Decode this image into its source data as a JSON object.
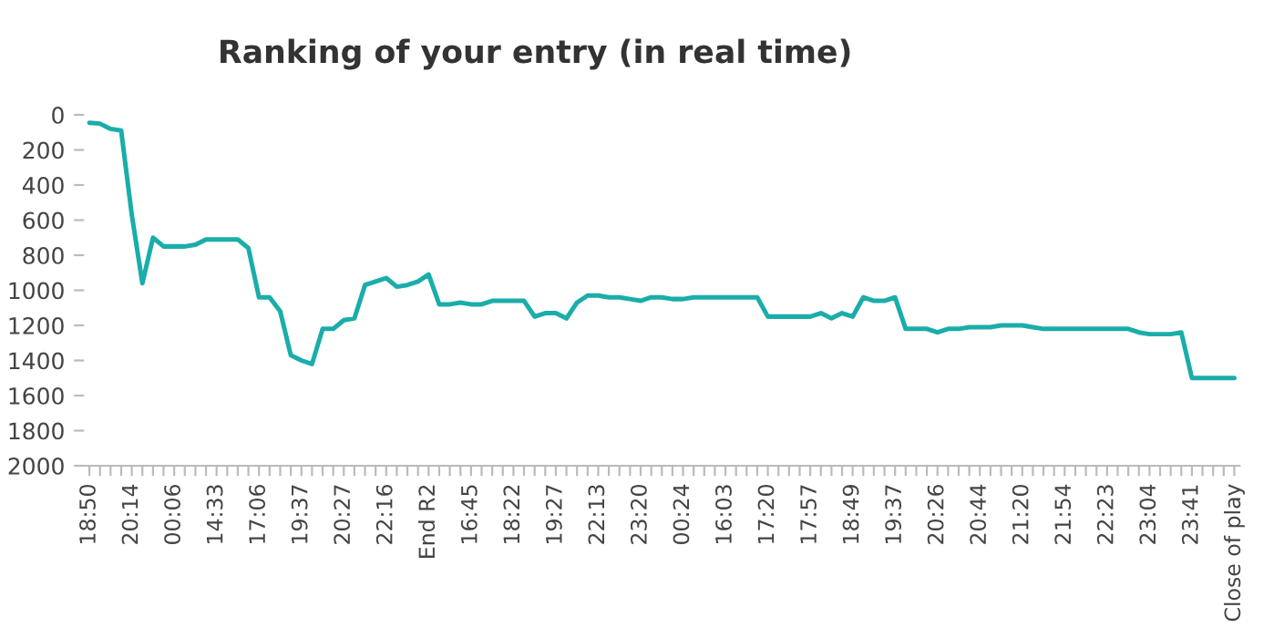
{
  "chart_data": {
    "type": "line",
    "title": "Ranking of your entry (in real time)",
    "categories": [
      "18:50",
      null,
      null,
      null,
      "20:14",
      null,
      null,
      null,
      "00:06",
      null,
      null,
      null,
      "14:33",
      null,
      null,
      null,
      "17:06",
      null,
      null,
      null,
      "19:37",
      null,
      null,
      null,
      "20:27",
      null,
      null,
      null,
      "22:16",
      null,
      null,
      null,
      "End R2",
      null,
      null,
      null,
      "16:45",
      null,
      null,
      null,
      "18:22",
      null,
      null,
      null,
      "19:27",
      null,
      null,
      null,
      "22:13",
      null,
      null,
      null,
      "23:20",
      null,
      null,
      null,
      "00:24",
      null,
      null,
      null,
      "16:03",
      null,
      null,
      null,
      "17:20",
      null,
      null,
      null,
      "17:57",
      null,
      null,
      null,
      "18:49",
      null,
      null,
      null,
      "19:37",
      null,
      null,
      null,
      "20:26",
      null,
      null,
      null,
      "20:44",
      null,
      null,
      null,
      "21:20",
      null,
      null,
      null,
      "21:54",
      null,
      null,
      null,
      "22:23",
      null,
      null,
      null,
      "23:04",
      null,
      null,
      null,
      "23:41",
      null,
      null,
      null,
      "Close of play"
    ],
    "series": [
      {
        "color": "#1aadaa",
        "values": [
          45,
          50,
          80,
          90,
          570,
          960,
          700,
          750,
          750,
          750,
          740,
          710,
          710,
          710,
          710,
          760,
          1040,
          1040,
          1120,
          1370,
          1400,
          1420,
          1220,
          1220,
          1170,
          1160,
          970,
          950,
          930,
          980,
          970,
          950,
          910,
          1080,
          1080,
          1070,
          1080,
          1080,
          1060,
          1060,
          1060,
          1060,
          1150,
          1130,
          1130,
          1160,
          1070,
          1030,
          1030,
          1040,
          1040,
          1050,
          1060,
          1040,
          1040,
          1050,
          1050,
          1040,
          1040,
          1040,
          1040,
          1040,
          1040,
          1040,
          1150,
          1150,
          1150,
          1150,
          1150,
          1130,
          1160,
          1130,
          1150,
          1040,
          1060,
          1060,
          1040,
          1220,
          1220,
          1220,
          1240,
          1220,
          1220,
          1210,
          1210,
          1210,
          1200,
          1200,
          1200,
          1210,
          1220,
          1220,
          1220,
          1220,
          1220,
          1220,
          1220,
          1220,
          1220,
          1240,
          1250,
          1250,
          1250,
          1240,
          1500,
          1500,
          1500,
          1500,
          1500
        ]
      }
    ],
    "ylim": [
      2000,
      0
    ],
    "yticks": [
      0,
      200,
      400,
      600,
      800,
      1000,
      1200,
      1400,
      1600,
      1800,
      2000
    ],
    "grid": false,
    "legend": false,
    "marker": "none",
    "line_style": "solid"
  }
}
